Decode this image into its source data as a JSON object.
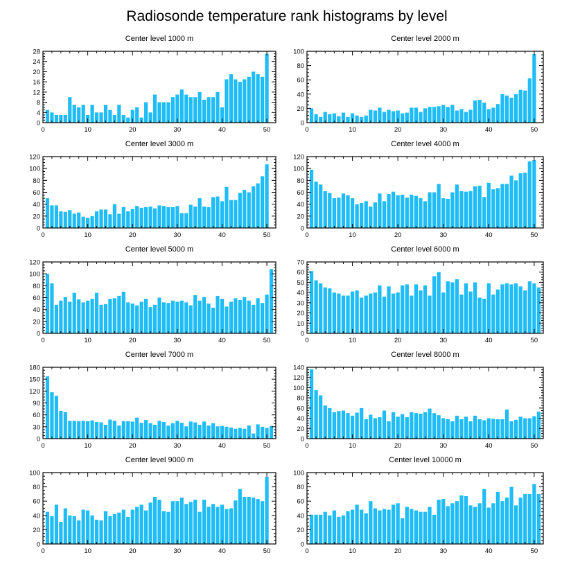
{
  "title": "Radiosonde temperature rank histograms by level",
  "chart_data": [
    {
      "type": "bar",
      "title": "Center level 1000 m",
      "xlim": [
        0,
        52
      ],
      "ylim": [
        0,
        28
      ],
      "xticks": [
        0,
        10,
        20,
        30,
        40,
        50
      ],
      "yticks": [
        0,
        4,
        8,
        12,
        16,
        20,
        24,
        28
      ],
      "values": [
        5,
        4,
        3,
        3,
        3,
        10,
        7,
        6,
        7,
        3,
        7,
        4,
        4,
        7,
        5,
        3,
        7,
        3,
        2,
        5,
        6,
        2,
        8,
        4,
        11,
        8,
        8,
        8,
        10,
        11,
        13,
        11,
        10,
        10,
        12,
        9,
        10,
        10,
        12,
        6,
        17,
        19,
        17,
        16,
        17,
        18,
        20,
        19,
        18,
        27
      ]
    },
    {
      "type": "bar",
      "title": "Center level 2000 m",
      "xlim": [
        0,
        52
      ],
      "ylim": [
        0,
        100
      ],
      "xticks": [
        0,
        10,
        20,
        30,
        40,
        50
      ],
      "yticks": [
        0,
        20,
        40,
        60,
        80,
        100
      ],
      "values": [
        20,
        12,
        8,
        15,
        12,
        13,
        9,
        14,
        8,
        13,
        10,
        8,
        10,
        18,
        17,
        21,
        15,
        18,
        16,
        17,
        13,
        14,
        21,
        21,
        15,
        20,
        22,
        22,
        23,
        25,
        22,
        25,
        17,
        19,
        15,
        18,
        31,
        32,
        28,
        19,
        21,
        26,
        40,
        38,
        35,
        40,
        46,
        45,
        62,
        96
      ]
    },
    {
      "type": "bar",
      "title": "Center level 3000 m",
      "xlim": [
        0,
        52
      ],
      "ylim": [
        0,
        120
      ],
      "xticks": [
        0,
        10,
        20,
        30,
        40,
        50
      ],
      "yticks": [
        0,
        20,
        40,
        60,
        80,
        100,
        120
      ],
      "values": [
        50,
        38,
        38,
        28,
        27,
        30,
        24,
        26,
        19,
        17,
        20,
        28,
        31,
        31,
        23,
        40,
        24,
        35,
        28,
        32,
        37,
        34,
        35,
        36,
        33,
        38,
        37,
        35,
        35,
        37,
        25,
        25,
        39,
        36,
        50,
        36,
        35,
        52,
        53,
        45,
        69,
        47,
        47,
        59,
        64,
        60,
        70,
        75,
        87,
        107
      ]
    },
    {
      "type": "bar",
      "title": "Center level 4000 m",
      "xlim": [
        0,
        52
      ],
      "ylim": [
        0,
        120
      ],
      "xticks": [
        0,
        10,
        20,
        30,
        40,
        50
      ],
      "yticks": [
        0,
        20,
        40,
        60,
        80,
        100,
        120
      ],
      "values": [
        98,
        78,
        73,
        62,
        59,
        50,
        51,
        58,
        55,
        50,
        40,
        42,
        45,
        36,
        43,
        58,
        45,
        57,
        61,
        55,
        56,
        51,
        56,
        54,
        50,
        45,
        60,
        60,
        74,
        50,
        49,
        60,
        73,
        62,
        61,
        62,
        70,
        71,
        52,
        76,
        65,
        67,
        74,
        74,
        88,
        80,
        92,
        93,
        112,
        114
      ]
    },
    {
      "type": "bar",
      "title": "Center level 5000 m",
      "xlim": [
        0,
        52
      ],
      "ylim": [
        0,
        120
      ],
      "xticks": [
        0,
        10,
        20,
        30,
        40,
        50
      ],
      "yticks": [
        0,
        20,
        40,
        60,
        80,
        100,
        120
      ],
      "values": [
        100,
        84,
        48,
        55,
        61,
        53,
        68,
        57,
        52,
        55,
        58,
        68,
        48,
        49,
        58,
        59,
        63,
        70,
        52,
        50,
        47,
        53,
        58,
        44,
        48,
        60,
        52,
        51,
        55,
        53,
        55,
        52,
        47,
        64,
        55,
        61,
        50,
        43,
        63,
        58,
        45,
        53,
        59,
        56,
        61,
        55,
        48,
        59,
        51,
        65,
        108
      ]
    },
    {
      "type": "bar",
      "title": "Center level 6000 m",
      "xlim": [
        0,
        52
      ],
      "ylim": [
        0,
        70
      ],
      "xticks": [
        0,
        10,
        20,
        30,
        40,
        50
      ],
      "yticks": [
        0,
        10,
        20,
        30,
        40,
        50,
        60,
        70
      ],
      "values": [
        61,
        52,
        49,
        45,
        44,
        40,
        39,
        37,
        37,
        41,
        42,
        35,
        37,
        39,
        40,
        47,
        36,
        46,
        39,
        40,
        47,
        48,
        37,
        48,
        42,
        47,
        37,
        56,
        60,
        40,
        51,
        50,
        53,
        38,
        49,
        41,
        50,
        35,
        34,
        49,
        38,
        43,
        48,
        49,
        48,
        49,
        46,
        42,
        51,
        49,
        45
      ]
    },
    {
      "type": "bar",
      "title": "Center level 7000 m",
      "xlim": [
        0,
        52
      ],
      "ylim": [
        0,
        180
      ],
      "xticks": [
        0,
        10,
        20,
        30,
        40,
        50
      ],
      "yticks": [
        0,
        30,
        60,
        90,
        120,
        150,
        180
      ],
      "values": [
        157,
        117,
        108,
        70,
        67,
        45,
        45,
        44,
        45,
        44,
        46,
        42,
        41,
        35,
        48,
        45,
        33,
        44,
        44,
        43,
        53,
        40,
        47,
        39,
        35,
        45,
        42,
        33,
        39,
        45,
        40,
        31,
        43,
        41,
        35,
        43,
        33,
        39,
        31,
        32,
        30,
        28,
        25,
        27,
        25,
        33,
        13,
        36,
        30,
        27,
        32
      ]
    },
    {
      "type": "bar",
      "title": "Center level 8000 m",
      "xlim": [
        0,
        52
      ],
      "ylim": [
        0,
        140
      ],
      "xticks": [
        0,
        10,
        20,
        30,
        40,
        50
      ],
      "yticks": [
        0,
        20,
        40,
        60,
        80,
        100,
        120,
        140
      ],
      "values": [
        136,
        95,
        85,
        65,
        60,
        52,
        54,
        55,
        50,
        45,
        51,
        60,
        38,
        47,
        40,
        42,
        55,
        34,
        52,
        43,
        48,
        42,
        52,
        50,
        49,
        52,
        59,
        50,
        46,
        40,
        38,
        34,
        45,
        38,
        43,
        34,
        45,
        38,
        36,
        40,
        39,
        38,
        38,
        57,
        34,
        37,
        43,
        40,
        40,
        44,
        53
      ]
    },
    {
      "type": "bar",
      "title": "Center level 9000 m",
      "xlim": [
        0,
        52
      ],
      "ylim": [
        0,
        100
      ],
      "xticks": [
        0,
        10,
        20,
        30,
        40,
        50
      ],
      "yticks": [
        0,
        20,
        40,
        60,
        80,
        100
      ],
      "values": [
        45,
        39,
        55,
        31,
        50,
        40,
        39,
        33,
        48,
        47,
        40,
        34,
        33,
        46,
        39,
        42,
        44,
        48,
        38,
        48,
        52,
        55,
        47,
        58,
        66,
        62,
        46,
        45,
        60,
        60,
        65,
        56,
        59,
        62,
        45,
        62,
        52,
        56,
        52,
        55,
        49,
        50,
        61,
        77,
        66,
        66,
        65,
        63,
        60,
        94
      ]
    },
    {
      "type": "bar",
      "title": "Center level 10000 m",
      "xlim": [
        0,
        52
      ],
      "ylim": [
        0,
        100
      ],
      "xticks": [
        0,
        10,
        20,
        30,
        40,
        50
      ],
      "yticks": [
        0,
        20,
        40,
        60,
        80,
        100
      ],
      "values": [
        41,
        41,
        41,
        45,
        40,
        47,
        38,
        40,
        46,
        48,
        55,
        48,
        43,
        60,
        50,
        47,
        49,
        48,
        55,
        57,
        36,
        52,
        49,
        47,
        45,
        45,
        52,
        41,
        62,
        63,
        53,
        57,
        60,
        68,
        67,
        54,
        52,
        57,
        77,
        51,
        57,
        73,
        60,
        65,
        80,
        54,
        65,
        70,
        70,
        84,
        70
      ]
    }
  ]
}
